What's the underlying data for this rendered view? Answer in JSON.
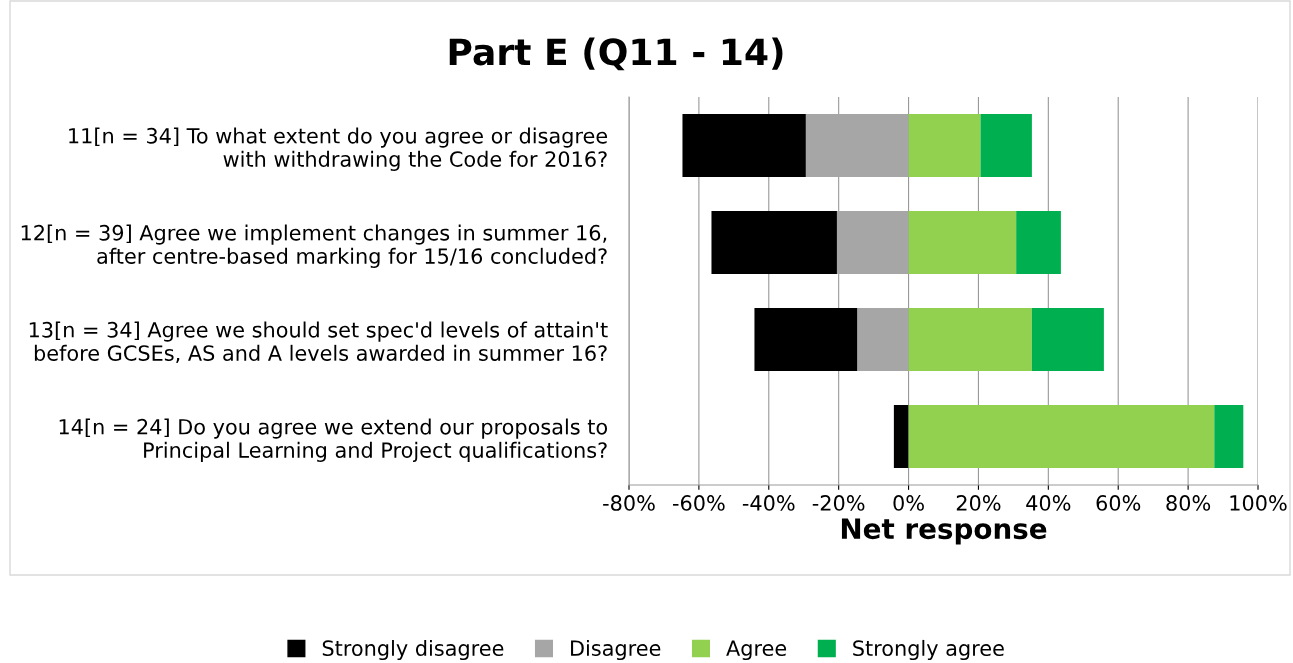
{
  "chart_data": {
    "type": "bar",
    "orientation": "horizontal",
    "stacked": true,
    "title": "Part E (Q11 - 14)",
    "xlabel": "Net response",
    "categories": [
      "11[n = 34] To what extent do you agree or disagree\nwith withdrawing the Code for 2016?",
      "12[n = 39] Agree we implement changes in summer 16,\nafter centre-based marking for 15/16 concluded?",
      "13[n = 34] Agree we should set spec'd levels of attain't\nbefore GCSEs, AS and A levels awarded in summer 16?",
      "14[n = 24] Do you agree we extend our proposals to\nPrincipal Learning and Project qualifications?"
    ],
    "series": [
      {
        "name": "Disagree",
        "color": "#a6a6a6",
        "values": [
          -29.4,
          -20.5,
          -14.7,
          0
        ]
      },
      {
        "name": "Strongly disagree",
        "color": "#000000",
        "values": [
          -35.3,
          -35.9,
          -29.4,
          -4.2
        ]
      },
      {
        "name": "Agree",
        "color": "#92d050",
        "values": [
          20.6,
          30.8,
          35.3,
          87.5
        ]
      },
      {
        "name": "Strongly agree",
        "color": "#00b050",
        "values": [
          14.7,
          12.8,
          20.6,
          8.3
        ]
      }
    ],
    "xlim": [
      -80,
      100
    ],
    "xticks": [
      {
        "value": -80,
        "label": "-80%"
      },
      {
        "value": -60,
        "label": "-60%"
      },
      {
        "value": -40,
        "label": "-40%"
      },
      {
        "value": -20,
        "label": "-20%"
      },
      {
        "value": 0,
        "label": "0%"
      },
      {
        "value": 20,
        "label": "20%"
      },
      {
        "value": 40,
        "label": "40%"
      },
      {
        "value": 60,
        "label": "60%"
      },
      {
        "value": 80,
        "label": "80%"
      },
      {
        "value": 100,
        "label": "100%"
      }
    ],
    "grid": "x",
    "legend": "bottom"
  }
}
